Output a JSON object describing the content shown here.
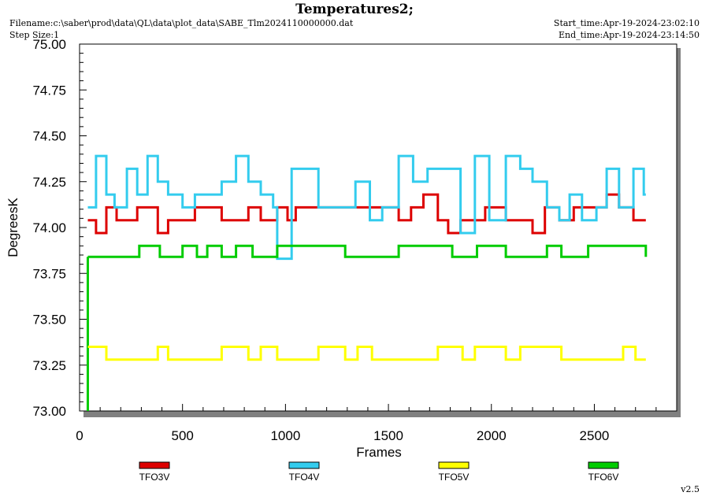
{
  "header": {
    "title": "Temperatures2;",
    "filename": "Filename:c:\\saber\\prod\\data\\QL\\data\\plot_data\\SABE_Tlm2024110000000.dat",
    "step_size": "Step Size:1",
    "start_time": "Start_time:Apr-19-2024-23:02:10",
    "end_time": "End_time:Apr-19-2024-23:14:50",
    "version": "v2.5"
  },
  "chart_data": {
    "type": "line",
    "title": "Temperatures2;",
    "xlabel": "Frames",
    "ylabel": "DegreesK",
    "xlim": [
      0,
      2900
    ],
    "ylim": [
      73.0,
      75.0
    ],
    "x_ticks": [
      0,
      500,
      1000,
      1500,
      2000,
      2500
    ],
    "y_ticks": [
      73.0,
      73.25,
      73.5,
      73.75,
      74.0,
      74.25,
      74.5,
      74.75,
      75.0
    ],
    "x_tick_labels": [
      "0",
      "500",
      "1000",
      "1500",
      "2000",
      "2500"
    ],
    "y_tick_labels": [
      "73.00",
      "73.25",
      "73.50",
      "73.75",
      "74.00",
      "74.25",
      "74.50",
      "74.75",
      "75.00"
    ],
    "legend_position": "bottom",
    "series": [
      {
        "name": "TFO3V",
        "color": "#dd0000",
        "step_points": [
          [
            40,
            74.04
          ],
          [
            80,
            73.97
          ],
          [
            130,
            74.11
          ],
          [
            180,
            74.04
          ],
          [
            280,
            74.11
          ],
          [
            380,
            73.97
          ],
          [
            430,
            74.04
          ],
          [
            560,
            74.11
          ],
          [
            690,
            74.04
          ],
          [
            820,
            74.11
          ],
          [
            880,
            74.04
          ],
          [
            960,
            74.11
          ],
          [
            1010,
            74.04
          ],
          [
            1050,
            74.11
          ],
          [
            1550,
            74.04
          ],
          [
            1610,
            74.11
          ],
          [
            1670,
            74.18
          ],
          [
            1740,
            74.04
          ],
          [
            1790,
            73.97
          ],
          [
            1850,
            74.04
          ],
          [
            1970,
            74.11
          ],
          [
            2070,
            74.04
          ],
          [
            2200,
            73.97
          ],
          [
            2260,
            74.11
          ],
          [
            2330,
            74.04
          ],
          [
            2400,
            74.11
          ],
          [
            2560,
            74.18
          ],
          [
            2620,
            74.11
          ],
          [
            2690,
            74.04
          ],
          [
            2750,
            74.04
          ]
        ]
      },
      {
        "name": "TFO4V",
        "color": "#33ccee",
        "step_points": [
          [
            40,
            74.11
          ],
          [
            80,
            74.39
          ],
          [
            130,
            74.18
          ],
          [
            170,
            74.11
          ],
          [
            230,
            74.32
          ],
          [
            280,
            74.18
          ],
          [
            330,
            74.39
          ],
          [
            380,
            74.25
          ],
          [
            430,
            74.18
          ],
          [
            500,
            74.11
          ],
          [
            560,
            74.18
          ],
          [
            690,
            74.25
          ],
          [
            760,
            74.39
          ],
          [
            820,
            74.25
          ],
          [
            880,
            74.18
          ],
          [
            940,
            74.11
          ],
          [
            960,
            73.83
          ],
          [
            1030,
            74.32
          ],
          [
            1160,
            74.11
          ],
          [
            1340,
            74.25
          ],
          [
            1410,
            74.04
          ],
          [
            1470,
            74.11
          ],
          [
            1550,
            74.39
          ],
          [
            1620,
            74.25
          ],
          [
            1690,
            74.32
          ],
          [
            1850,
            73.97
          ],
          [
            1920,
            74.39
          ],
          [
            1990,
            74.04
          ],
          [
            2070,
            74.39
          ],
          [
            2140,
            74.32
          ],
          [
            2200,
            74.25
          ],
          [
            2270,
            74.11
          ],
          [
            2330,
            74.04
          ],
          [
            2380,
            74.18
          ],
          [
            2440,
            74.04
          ],
          [
            2510,
            74.11
          ],
          [
            2560,
            74.32
          ],
          [
            2620,
            74.11
          ],
          [
            2690,
            74.32
          ],
          [
            2740,
            74.18
          ],
          [
            2750,
            74.18
          ]
        ]
      },
      {
        "name": "TFO5V",
        "color": "#ffff00",
        "step_points": [
          [
            40,
            73.35
          ],
          [
            130,
            73.28
          ],
          [
            380,
            73.35
          ],
          [
            430,
            73.28
          ],
          [
            690,
            73.35
          ],
          [
            820,
            73.28
          ],
          [
            880,
            73.35
          ],
          [
            960,
            73.28
          ],
          [
            1160,
            73.35
          ],
          [
            1290,
            73.28
          ],
          [
            1350,
            73.35
          ],
          [
            1420,
            73.28
          ],
          [
            1740,
            73.35
          ],
          [
            1860,
            73.28
          ],
          [
            1920,
            73.35
          ],
          [
            2070,
            73.28
          ],
          [
            2140,
            73.35
          ],
          [
            2340,
            73.28
          ],
          [
            2640,
            73.35
          ],
          [
            2700,
            73.28
          ],
          [
            2750,
            73.28
          ]
        ]
      },
      {
        "name": "TFO6V",
        "color": "#00cc00",
        "step_points": [
          [
            40,
            73.84
          ],
          [
            290,
            73.9
          ],
          [
            390,
            73.84
          ],
          [
            500,
            73.9
          ],
          [
            570,
            73.84
          ],
          [
            620,
            73.9
          ],
          [
            690,
            73.84
          ],
          [
            760,
            73.9
          ],
          [
            840,
            73.84
          ],
          [
            960,
            73.9
          ],
          [
            1290,
            73.84
          ],
          [
            1550,
            73.9
          ],
          [
            1810,
            73.84
          ],
          [
            1930,
            73.9
          ],
          [
            2070,
            73.84
          ],
          [
            2270,
            73.9
          ],
          [
            2340,
            73.84
          ],
          [
            2470,
            73.9
          ],
          [
            2750,
            73.84
          ]
        ]
      }
    ]
  }
}
